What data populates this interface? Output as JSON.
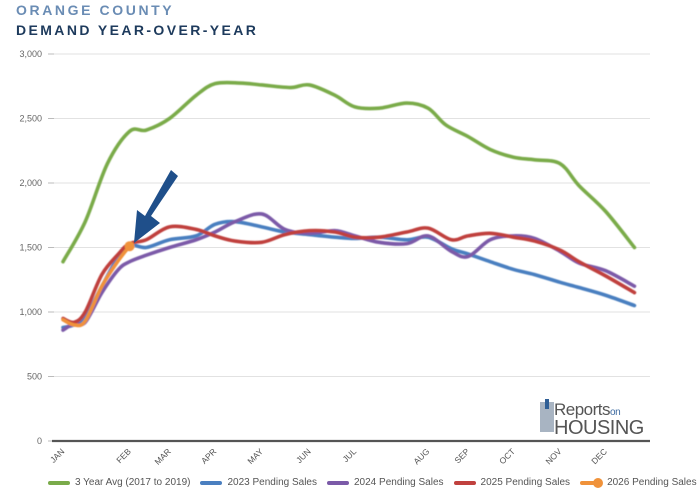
{
  "header": {
    "title_line1": "ORANGE COUNTY",
    "title_line2": "DEMAND YEAR-OVER-YEAR"
  },
  "logo": {
    "line1": "Reports",
    "line1_small": "on",
    "line2": "HOUSING"
  },
  "chart_data": {
    "type": "line",
    "title": "ORANGE COUNTY DEMAND YEAR-OVER-YEAR",
    "xlabel": "",
    "ylabel": "",
    "ylim": [
      0,
      3000
    ],
    "xlim_weeks": [
      0,
      52
    ],
    "yticks": [
      0,
      500,
      1000,
      1500,
      2000,
      2500,
      3000
    ],
    "ytick_labels": [
      "0",
      "500",
      "1,000",
      "1,500",
      "2,000",
      "2,500",
      "3,000"
    ],
    "x_tick_labels": [
      "JAN",
      "FEB",
      "MAR",
      "APR",
      "MAY",
      "JUN",
      "JUL",
      "AUG",
      "SEP",
      "OCT",
      "NOV",
      "DEC"
    ],
    "x_tick_weeks": [
      0,
      6,
      9.6,
      13.7,
      17.9,
      22.2,
      26.3,
      32.9,
      36.5,
      40.6,
      44.8,
      48.9
    ],
    "grid": "horizontal",
    "legend_position": "bottom",
    "annotation": "arrow pointing to latest 2026 Pending Sales value",
    "series": [
      {
        "name": "3 Year Avg (2017 to 2019)",
        "color": "#7aab4a",
        "x": [
          0,
          2,
          4,
          6,
          7.5,
          9.6,
          12,
          13.7,
          16,
          17.9,
          20.5,
          22.2,
          24.5,
          26.3,
          28.5,
          31,
          32.9,
          34.5,
          36.5,
          38.5,
          40.6,
          42.5,
          44.8,
          46.5,
          48.9,
          51.5
        ],
        "values": [
          1390,
          1700,
          2150,
          2400,
          2410,
          2500,
          2680,
          2770,
          2775,
          2760,
          2740,
          2760,
          2680,
          2590,
          2580,
          2620,
          2580,
          2450,
          2360,
          2260,
          2200,
          2180,
          2150,
          1980,
          1780,
          1500
        ]
      },
      {
        "name": "2023 Pending Sales",
        "color": "#4a7fc0",
        "x": [
          0,
          1,
          2,
          3.5,
          5,
          6,
          7.5,
          9.6,
          12,
          13.7,
          15.5,
          17.9,
          20,
          22.2,
          24.5,
          26.3,
          28.5,
          31,
          32.9,
          35,
          36.5,
          38.5,
          40.6,
          42.5,
          44.8,
          46.5,
          48.9,
          51.5
        ],
        "values": [
          880,
          900,
          960,
          1200,
          1430,
          1520,
          1500,
          1560,
          1590,
          1680,
          1700,
          1660,
          1620,
          1600,
          1580,
          1570,
          1580,
          1560,
          1580,
          1490,
          1450,
          1390,
          1330,
          1290,
          1230,
          1190,
          1130,
          1050
        ]
      },
      {
        "name": "2024 Pending Sales",
        "color": "#7b5aa8",
        "x": [
          0,
          1,
          2,
          3.5,
          5,
          6,
          7.5,
          9.6,
          12,
          13.7,
          15.5,
          17.9,
          20,
          22.2,
          24.5,
          26.3,
          28.5,
          31,
          32.9,
          35,
          36.5,
          38.5,
          40.6,
          42.5,
          44.8,
          46.5,
          48.9,
          51.5
        ],
        "values": [
          860,
          910,
          920,
          1150,
          1330,
          1390,
          1440,
          1500,
          1560,
          1620,
          1700,
          1760,
          1640,
          1610,
          1630,
          1590,
          1540,
          1530,
          1590,
          1470,
          1430,
          1560,
          1590,
          1570,
          1470,
          1380,
          1320,
          1200
        ]
      },
      {
        "name": "2025 Pending Sales",
        "color": "#c0413e",
        "x": [
          0,
          1,
          2,
          3.5,
          5,
          6,
          7.5,
          9.6,
          12,
          13.7,
          15.5,
          17.9,
          20,
          22.2,
          24.5,
          26.3,
          28.5,
          31,
          32.9,
          35,
          36.5,
          38.5,
          40.6,
          42.5,
          44.8,
          46.5,
          48.9,
          51.5
        ],
        "values": [
          950,
          920,
          1000,
          1290,
          1450,
          1530,
          1560,
          1660,
          1640,
          1590,
          1550,
          1540,
          1600,
          1630,
          1620,
          1580,
          1580,
          1620,
          1650,
          1560,
          1590,
          1610,
          1580,
          1550,
          1480,
          1390,
          1280,
          1150
        ]
      },
      {
        "name": "2026 Pending Sales",
        "color": "#f0923a",
        "x": [
          0,
          1,
          2,
          3.5,
          5,
          6
        ],
        "values": [
          940,
          900,
          930,
          1200,
          1400,
          1510
        ],
        "marker_last": true
      }
    ]
  }
}
